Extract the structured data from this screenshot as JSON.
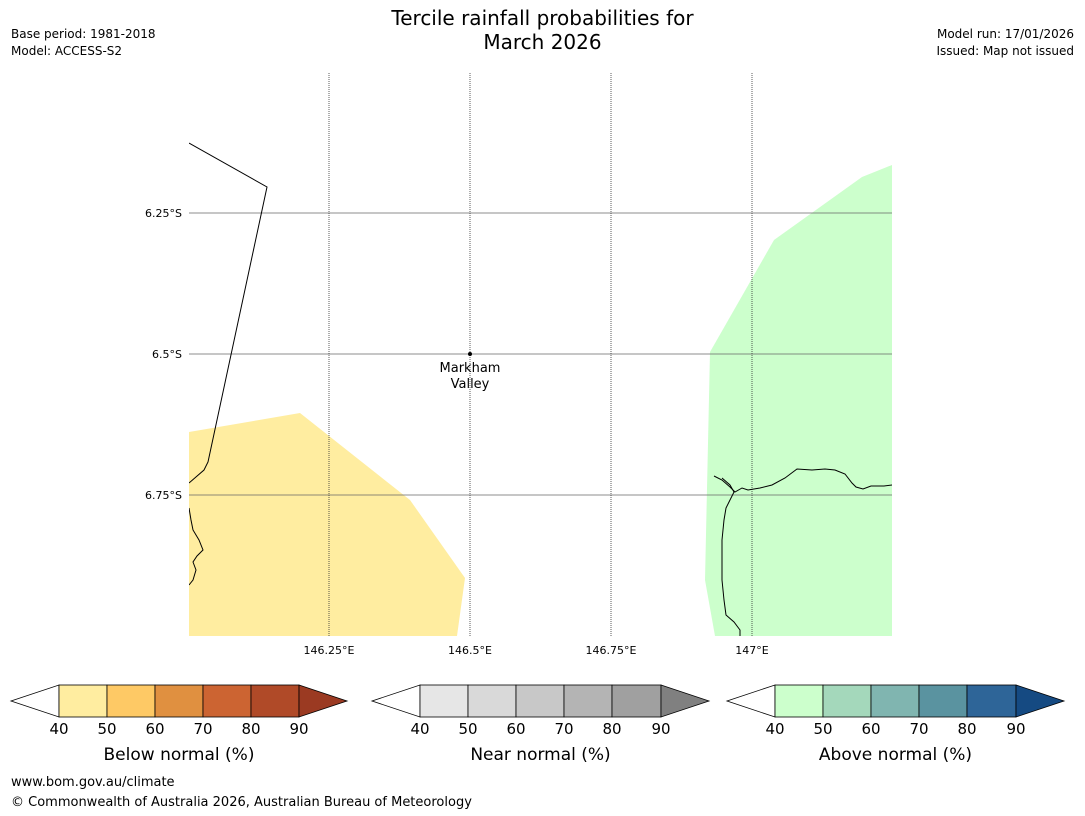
{
  "header": {
    "title_line1": "Tercile rainfall probabilities for",
    "title_line2": "March 2026",
    "base_period": "Base period: 1981-2018",
    "model": "Model: ACCESS-S2",
    "model_run": "Model run: 17/01/2026",
    "issued": "Issued: Map not issued"
  },
  "map": {
    "lat_labels": [
      "6.25°S",
      "6.5°S",
      "6.75°S"
    ],
    "lon_labels": [
      "146.25°E",
      "146.5°E",
      "146.75°E",
      "147°E"
    ],
    "place_name_line1": "Markham",
    "place_name_line2": "Valley",
    "region_colors": {
      "below_normal": "#ffeda0",
      "above_normal": "#ccffcc"
    }
  },
  "colorbars": [
    {
      "name": "below",
      "label": "Below normal (%)",
      "ticks": [
        "40",
        "50",
        "60",
        "70",
        "80",
        "90"
      ],
      "colors": [
        "#ffffff",
        "#ffeda0",
        "#fec965",
        "#e09040",
        "#cc6432",
        "#b04a28",
        "#9b3a22"
      ]
    },
    {
      "name": "near",
      "label": "Near normal (%)",
      "ticks": [
        "40",
        "50",
        "60",
        "70",
        "80",
        "90"
      ],
      "colors": [
        "#ffffff",
        "#e6e6e6",
        "#d9d9d9",
        "#c8c8c8",
        "#b4b4b4",
        "#a0a0a0",
        "#808080"
      ]
    },
    {
      "name": "above",
      "label": "Above normal (%)",
      "ticks": [
        "40",
        "50",
        "60",
        "70",
        "80",
        "90"
      ],
      "colors": [
        "#ffffff",
        "#ccffcc",
        "#a4d8bb",
        "#80b5b0",
        "#5a93a0",
        "#2e6598",
        "#154a82"
      ]
    }
  ],
  "footer": {
    "url": "www.bom.gov.au/climate",
    "copyright": "© Commonwealth of Australia 2026, Australian Bureau of Meteorology"
  }
}
